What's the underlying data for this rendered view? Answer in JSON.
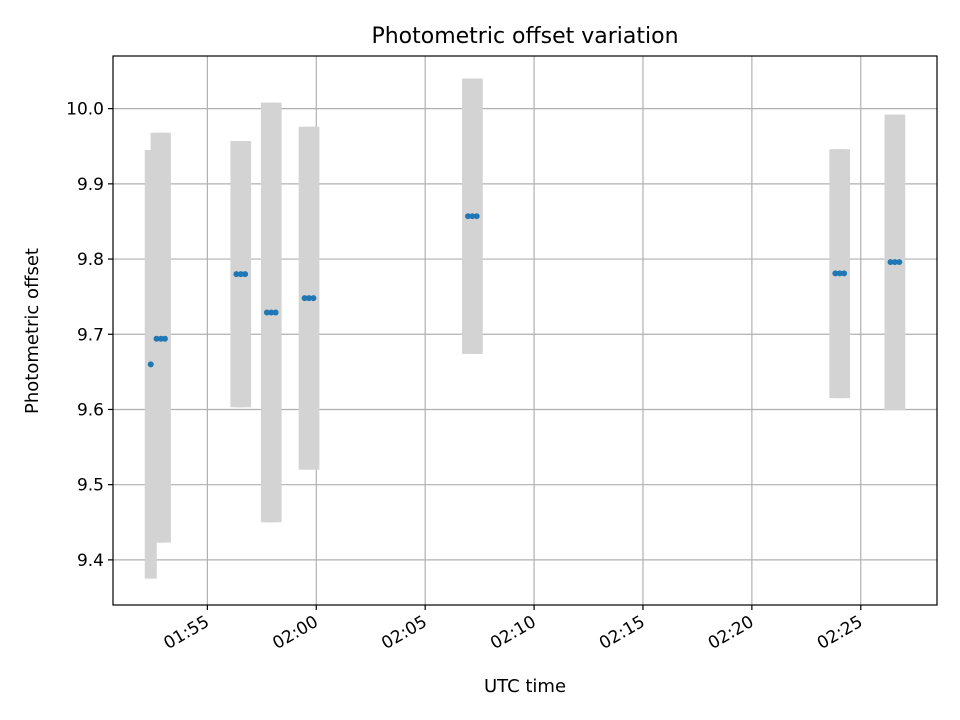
{
  "chart_data": {
    "type": "scatter",
    "title": "Photometric offset variation",
    "xlabel": "UTC time",
    "ylabel": "Photometric offset",
    "x_axis_type": "time",
    "xlim": [
      "01:50:40",
      "02:28:30"
    ],
    "ylim": [
      9.34,
      10.07
    ],
    "yticks": [
      9.4,
      9.5,
      9.6,
      9.7,
      9.8,
      9.9,
      10.0
    ],
    "ytick_labels": [
      "9.4",
      "9.5",
      "9.6",
      "9.7",
      "9.8",
      "9.9",
      "10.0"
    ],
    "xticks": [
      "01:55:00",
      "02:00:00",
      "02:05:00",
      "02:10:00",
      "02:15:00",
      "02:20:00",
      "02:25:00"
    ],
    "xtick_labels": [
      "01:55",
      "02:00",
      "02:05",
      "02:10",
      "02:15",
      "02:20",
      "02:25"
    ],
    "grid": true,
    "point_color": "#1f77b4",
    "errorbar_color": "#d3d3d3",
    "points": [
      {
        "x": "01:52:24",
        "y": 9.66,
        "ylow": 9.375,
        "yhigh": 9.945
      },
      {
        "x": "01:52:40",
        "y": 9.694,
        "ylow": 9.423,
        "yhigh": 9.968
      },
      {
        "x": "01:52:52",
        "y": 9.694,
        "ylow": 9.423,
        "yhigh": 9.968
      },
      {
        "x": "01:53:03",
        "y": 9.694,
        "ylow": 9.423,
        "yhigh": 9.968
      },
      {
        "x": "01:56:20",
        "y": 9.78,
        "ylow": 9.603,
        "yhigh": 9.957
      },
      {
        "x": "01:56:32",
        "y": 9.78,
        "ylow": 9.603,
        "yhigh": 9.957
      },
      {
        "x": "01:56:44",
        "y": 9.78,
        "ylow": 9.603,
        "yhigh": 9.957
      },
      {
        "x": "01:57:44",
        "y": 9.729,
        "ylow": 9.45,
        "yhigh": 10.008
      },
      {
        "x": "01:57:56",
        "y": 9.729,
        "ylow": 9.45,
        "yhigh": 10.008
      },
      {
        "x": "01:58:08",
        "y": 9.729,
        "ylow": 9.45,
        "yhigh": 10.008
      },
      {
        "x": "01:59:28",
        "y": 9.748,
        "ylow": 9.52,
        "yhigh": 9.976
      },
      {
        "x": "01:59:40",
        "y": 9.748,
        "ylow": 9.52,
        "yhigh": 9.976
      },
      {
        "x": "01:59:52",
        "y": 9.748,
        "ylow": 9.52,
        "yhigh": 9.976
      },
      {
        "x": "02:06:58",
        "y": 9.857,
        "ylow": 9.674,
        "yhigh": 10.04
      },
      {
        "x": "02:07:10",
        "y": 9.857,
        "ylow": 9.674,
        "yhigh": 10.04
      },
      {
        "x": "02:07:22",
        "y": 9.857,
        "ylow": 9.674,
        "yhigh": 10.04
      },
      {
        "x": "02:23:50",
        "y": 9.781,
        "ylow": 9.615,
        "yhigh": 9.946
      },
      {
        "x": "02:24:02",
        "y": 9.781,
        "ylow": 9.615,
        "yhigh": 9.946
      },
      {
        "x": "02:24:14",
        "y": 9.781,
        "ylow": 9.615,
        "yhigh": 9.946
      },
      {
        "x": "02:26:22",
        "y": 9.796,
        "ylow": 9.599,
        "yhigh": 9.992
      },
      {
        "x": "02:26:34",
        "y": 9.796,
        "ylow": 9.599,
        "yhigh": 9.992
      },
      {
        "x": "02:26:46",
        "y": 9.796,
        "ylow": 9.599,
        "yhigh": 9.992
      }
    ]
  }
}
